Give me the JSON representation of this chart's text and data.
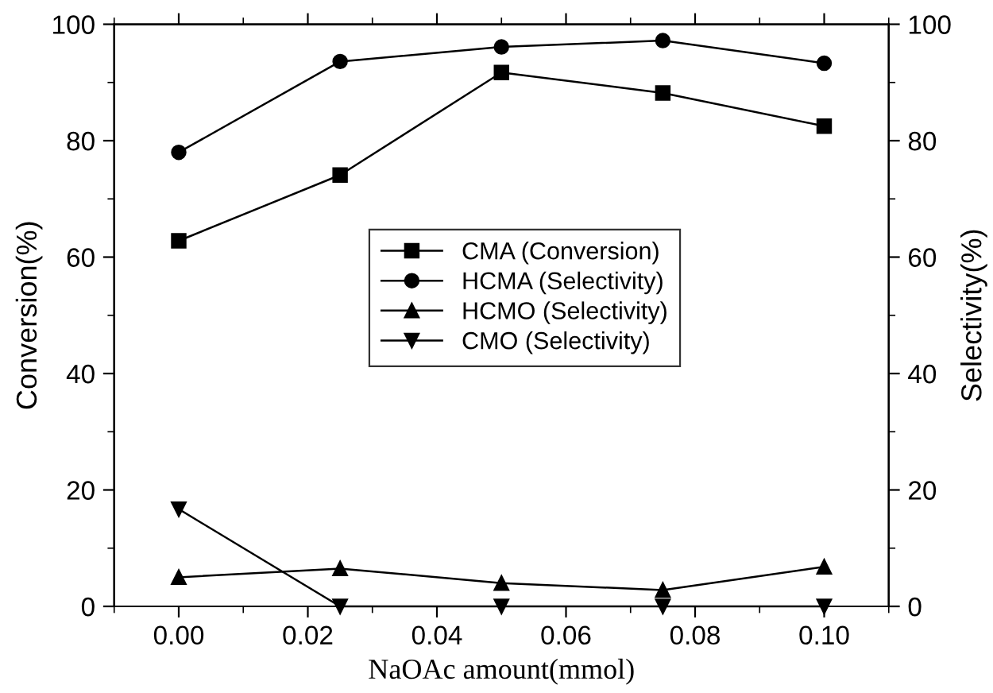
{
  "chart_data": {
    "type": "line",
    "xlabel": "NaOAc amount(mmol)",
    "ylabel": "Conversion(%)",
    "y2label": "Selectivity(%)",
    "x": [
      0.0,
      0.025,
      0.05,
      0.075,
      0.1
    ],
    "xlim": [
      -0.01,
      0.11
    ],
    "xticks": [
      {
        "value": 0.0,
        "label": "0.00"
      },
      {
        "value": 0.02,
        "label": "0.02"
      },
      {
        "value": 0.04,
        "label": "0.04"
      },
      {
        "value": 0.06,
        "label": "0.06"
      },
      {
        "value": 0.08,
        "label": "0.08"
      },
      {
        "value": 0.1,
        "label": "0.10"
      }
    ],
    "ylim": [
      0,
      100
    ],
    "yticks": [
      0,
      20,
      40,
      60,
      80,
      100
    ],
    "y2lim": [
      0,
      100
    ],
    "y2ticks": [
      0,
      20,
      40,
      60,
      80,
      100
    ],
    "legend": "center",
    "grid": false,
    "line_style": "solid",
    "series": [
      {
        "name": "CMA (Conversion)",
        "color": "#000000",
        "marker": "square",
        "values": [
          62.8,
          74.1,
          91.7,
          88.2,
          82.5
        ]
      },
      {
        "name": "HCMA (Selectivity)",
        "color": "#000000",
        "marker": "circle",
        "values": [
          78.0,
          93.6,
          96.1,
          97.2,
          93.3
        ]
      },
      {
        "name": "HCMO (Selectivity)",
        "color": "#000000",
        "marker": "triangle",
        "values": [
          5.0,
          6.5,
          4.0,
          2.8,
          6.8
        ]
      },
      {
        "name": "CMO (Selectivity)",
        "color": "#000000",
        "marker": "triangle_down",
        "values": [
          16.7,
          0,
          0,
          0,
          0
        ]
      }
    ]
  }
}
